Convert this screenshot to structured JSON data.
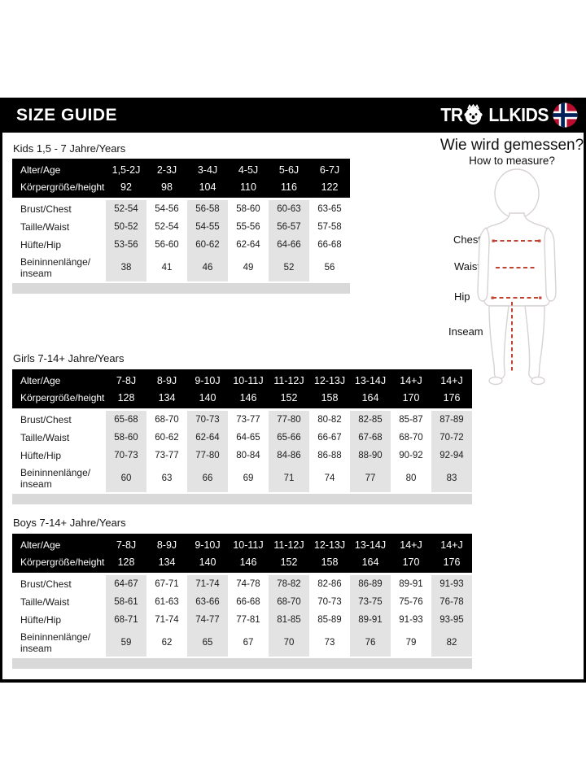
{
  "header": {
    "title": "SIZE GUIDE",
    "brand_prefix": "TR",
    "brand_suffix": "LLKIDS"
  },
  "tables": [
    {
      "title": "Kids 1,5 - 7 Jahre/Years",
      "header_rows": [
        {
          "label": "Alter/Age",
          "values": [
            "1,5-2J",
            "2-3J",
            "3-4J",
            "4-5J",
            "5-6J",
            "6-7J"
          ]
        },
        {
          "label": "Körpergröße/height",
          "values": [
            "92",
            "98",
            "104",
            "110",
            "116",
            "122"
          ]
        }
      ],
      "rows": [
        {
          "label": "Brust/Chest",
          "values": [
            "52-54",
            "54-56",
            "56-58",
            "58-60",
            "60-63",
            "63-65"
          ]
        },
        {
          "label": "Taille/Waist",
          "values": [
            "50-52",
            "52-54",
            "54-55",
            "55-56",
            "56-57",
            "57-58"
          ]
        },
        {
          "label": "Hüfte/Hip",
          "values": [
            "53-56",
            "56-60",
            "60-62",
            "62-64",
            "64-66",
            "66-68"
          ]
        },
        {
          "label": "Beininnenlänge/ inseam",
          "values": [
            "38",
            "41",
            "46",
            "49",
            "52",
            "56"
          ]
        }
      ]
    },
    {
      "title": "Girls 7-14+ Jahre/Years",
      "header_rows": [
        {
          "label": "Alter/Age",
          "values": [
            "7-8J",
            "8-9J",
            "9-10J",
            "10-11J",
            "11-12J",
            "12-13J",
            "13-14J",
            "14+J",
            "14+J"
          ]
        },
        {
          "label": "Körpergröße/height",
          "values": [
            "128",
            "134",
            "140",
            "146",
            "152",
            "158",
            "164",
            "170",
            "176"
          ]
        }
      ],
      "rows": [
        {
          "label": "Brust/Chest",
          "values": [
            "65-68",
            "68-70",
            "70-73",
            "73-77",
            "77-80",
            "80-82",
            "82-85",
            "85-87",
            "87-89"
          ]
        },
        {
          "label": "Taille/Waist",
          "values": [
            "58-60",
            "60-62",
            "62-64",
            "64-65",
            "65-66",
            "66-67",
            "67-68",
            "68-70",
            "70-72"
          ]
        },
        {
          "label": "Hüfte/Hip",
          "values": [
            "70-73",
            "73-77",
            "77-80",
            "80-84",
            "84-86",
            "86-88",
            "88-90",
            "90-92",
            "92-94"
          ]
        },
        {
          "label": "Beininnenlänge/ inseam",
          "values": [
            "60",
            "63",
            "66",
            "69",
            "71",
            "74",
            "77",
            "80",
            "83"
          ]
        }
      ]
    },
    {
      "title": "Boys 7-14+ Jahre/Years",
      "header_rows": [
        {
          "label": "Alter/Age",
          "values": [
            "7-8J",
            "8-9J",
            "9-10J",
            "10-11J",
            "11-12J",
            "12-13J",
            "13-14J",
            "14+J",
            "14+J"
          ]
        },
        {
          "label": "Körpergröße/height",
          "values": [
            "128",
            "134",
            "140",
            "146",
            "152",
            "158",
            "164",
            "170",
            "176"
          ]
        }
      ],
      "rows": [
        {
          "label": "Brust/Chest",
          "values": [
            "64-67",
            "67-71",
            "71-74",
            "74-78",
            "78-82",
            "82-86",
            "86-89",
            "89-91",
            "91-93"
          ]
        },
        {
          "label": "Taille/Waist",
          "values": [
            "58-61",
            "61-63",
            "63-66",
            "66-68",
            "68-70",
            "70-73",
            "73-75",
            "75-76",
            "76-78"
          ]
        },
        {
          "label": "Hüfte/Hip",
          "values": [
            "68-71",
            "71-74",
            "74-77",
            "77-81",
            "81-85",
            "85-89",
            "89-91",
            "91-93",
            "93-95"
          ]
        },
        {
          "label": "Beininnenlänge/ inseam",
          "values": [
            "59",
            "62",
            "65",
            "67",
            "70",
            "73",
            "76",
            "79",
            "82"
          ]
        }
      ]
    }
  ],
  "measure": {
    "title_de": "Wie wird gemessen?",
    "title_en": "How to measure?",
    "labels": {
      "chest": "Chest",
      "waist": "Waist",
      "hip": "Hip",
      "inseam": "Inseam"
    }
  },
  "colors": {
    "band": "#e3e3e3",
    "strip": "#d9d9d9",
    "bar": "#000000",
    "measure_line": "#bf4330",
    "flag_red": "#ba0c2f",
    "flag_blue": "#00205b",
    "figure_outline": "#d8d2d2"
  }
}
